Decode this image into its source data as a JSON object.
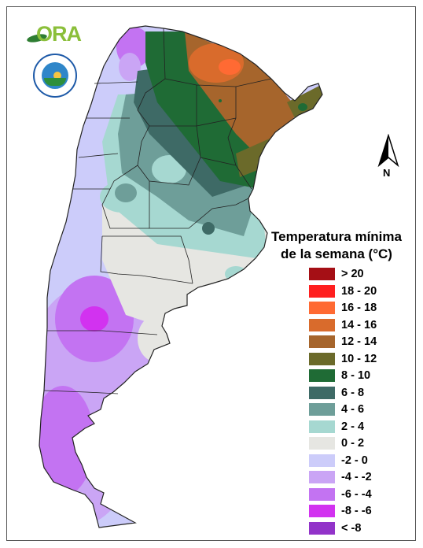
{
  "legend": {
    "title_line1": "Temperatura mínima",
    "title_line2": "de la semana (°C)",
    "items": [
      {
        "label": "> 20",
        "color": "#a50f15"
      },
      {
        "label": "18 - 20",
        "color": "#ff1f1f"
      },
      {
        "label": "16 - 18",
        "color": "#ff6a33"
      },
      {
        "label": "14 - 16",
        "color": "#d96b2c"
      },
      {
        "label": "12 - 14",
        "color": "#a6652c"
      },
      {
        "label": "10 - 12",
        "color": "#6b6a2a"
      },
      {
        "label": "8 - 10",
        "color": "#1f6b35"
      },
      {
        "label": "6 - 8",
        "color": "#3e6a66"
      },
      {
        "label": "4 - 6",
        "color": "#6e9e99"
      },
      {
        "label": "2 - 4",
        "color": "#a6d8d1"
      },
      {
        "label": "0 - 2",
        "color": "#e6e6e2"
      },
      {
        "label": "-2 - 0",
        "color": "#ccccfa"
      },
      {
        "label": "-4 - -2",
        "color": "#caa5f5"
      },
      {
        "label": "-6 - -4",
        "color": "#c373f2"
      },
      {
        "label": "-8 - -6",
        "color": "#d232f0"
      },
      {
        "label": "< -8",
        "color": "#9233c9"
      }
    ]
  },
  "compass": {
    "label": "N"
  },
  "logo": {
    "text": "ORA"
  }
}
